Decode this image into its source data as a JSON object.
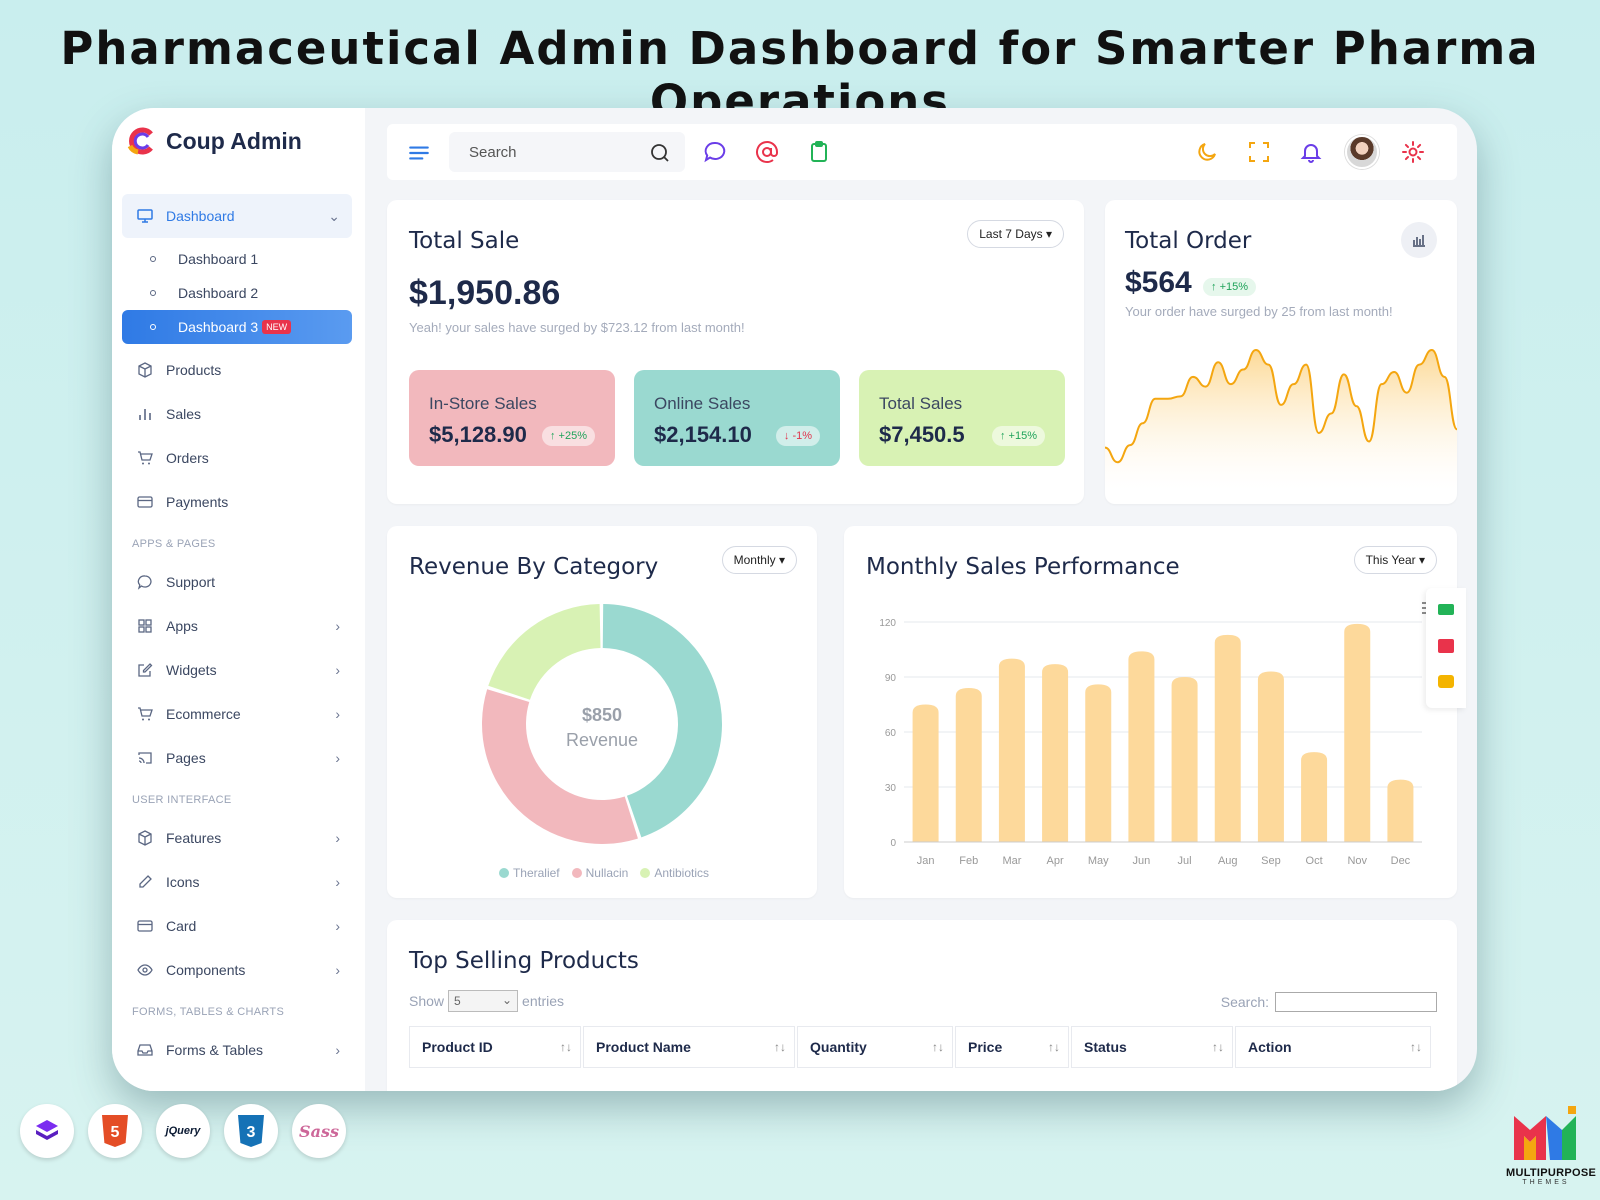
{
  "headline": "Pharmaceutical Admin Dashboard for Smarter Pharma Operations",
  "app": {
    "name": "Coup Admin"
  },
  "sidebar": {
    "dashboard": {
      "label": "Dashboard",
      "icon": "monitor-icon"
    },
    "dashboard_subs": [
      {
        "label": "Dashboard 1"
      },
      {
        "label": "Dashboard 2"
      },
      {
        "label": "Dashboard 3",
        "badge": "NEW"
      }
    ],
    "main_items": [
      {
        "label": "Products",
        "icon": "box-icon"
      },
      {
        "label": "Sales",
        "icon": "bar-chart-icon"
      },
      {
        "label": "Orders",
        "icon": "cart-icon"
      },
      {
        "label": "Payments",
        "icon": "credit-card-icon"
      }
    ],
    "section_apps": "APPS & PAGES",
    "apps_items": [
      {
        "label": "Support",
        "icon": "chat-icon"
      },
      {
        "label": "Apps",
        "icon": "grid-icon"
      },
      {
        "label": "Widgets",
        "icon": "edit-icon"
      },
      {
        "label": "Ecommerce",
        "icon": "cart-icon"
      },
      {
        "label": "Pages",
        "icon": "cast-icon"
      }
    ],
    "section_ui": "USER INTERFACE",
    "ui_items": [
      {
        "label": "Features",
        "icon": "box-icon"
      },
      {
        "label": "Icons",
        "icon": "pen-icon"
      },
      {
        "label": "Card",
        "icon": "credit-card-icon"
      },
      {
        "label": "Components",
        "icon": "eye-icon"
      }
    ],
    "section_forms": "FORMS, TABLES & CHARTS",
    "forms_items": [
      {
        "label": "Forms & Tables",
        "icon": "inbox-icon"
      }
    ]
  },
  "topbar": {
    "search_placeholder": "Search"
  },
  "total_sale": {
    "title": "Total Sale",
    "filter": "Last 7 Days",
    "value": "$1,950.86",
    "note": "Yeah! your sales have surged by $723.12 from last month!",
    "cards": [
      {
        "label": "In-Store Sales",
        "value": "$5,128.90",
        "change": "+25%",
        "dir": "up",
        "color": "#f2b8bd"
      },
      {
        "label": "Online Sales",
        "value": "$2,154.10",
        "change": "-1%",
        "dir": "down",
        "color": "#9ad9d0"
      },
      {
        "label": "Total Sales",
        "value": "$7,450.5",
        "change": "+15%",
        "dir": "up",
        "color": "#d8f2b4"
      }
    ]
  },
  "total_order": {
    "title": "Total Order",
    "value": "$564",
    "change": "+15%",
    "note": "Your order have surged by 25 from last month!"
  },
  "revenue": {
    "title": "Revenue By Category",
    "filter": "Monthly",
    "center_value": "$850",
    "center_label": "Revenue"
  },
  "monthly": {
    "title": "Monthly Sales Performance",
    "filter": "This Year"
  },
  "top_products": {
    "title": "Top Selling Products",
    "show_label": "Show",
    "show_value": "5",
    "entries_label": "entries",
    "search_label": "Search:",
    "columns": [
      "Product ID",
      "Product Name",
      "Quantity",
      "Price",
      "Status",
      "Action"
    ]
  },
  "footer": {
    "tech": [
      "Bootstrap",
      "HTML5",
      "jQuery",
      "CSS3",
      "Sass"
    ],
    "brand_name": "MULTIPURPOSE",
    "brand_sub": "THEMES"
  },
  "colors": {
    "accent": "#2f7ae5",
    "bar": "#fdd99b",
    "area_line": "#f4a610"
  },
  "chart_data": [
    {
      "type": "bar",
      "categories": [
        "Jan",
        "Feb",
        "Mar",
        "Apr",
        "May",
        "Jun",
        "Jul",
        "Aug",
        "Sep",
        "Oct",
        "Nov",
        "Dec"
      ],
      "values": [
        75,
        84,
        100,
        97,
        86,
        104,
        90,
        113,
        93,
        49,
        119,
        34
      ],
      "ylim": [
        0,
        120
      ],
      "yticks": [
        0,
        30,
        60,
        90,
        120
      ],
      "grid": true
    },
    {
      "type": "pie",
      "labels": [
        "Theralief",
        "Nullacin",
        "Antibiotics"
      ],
      "values": [
        45,
        35,
        20
      ],
      "colors": [
        "#9ad9d0",
        "#f2b8bd",
        "#d8f2b4"
      ],
      "legend": "bottom"
    },
    {
      "type": "area",
      "values": [
        20,
        8,
        22,
        40,
        60,
        60,
        62,
        78,
        70,
        90,
        72,
        84,
        100,
        88,
        55,
        72,
        88,
        32,
        48,
        80,
        54,
        25,
        72,
        82,
        65,
        88,
        100,
        78,
        35
      ],
      "color": "#f4a610"
    }
  ]
}
